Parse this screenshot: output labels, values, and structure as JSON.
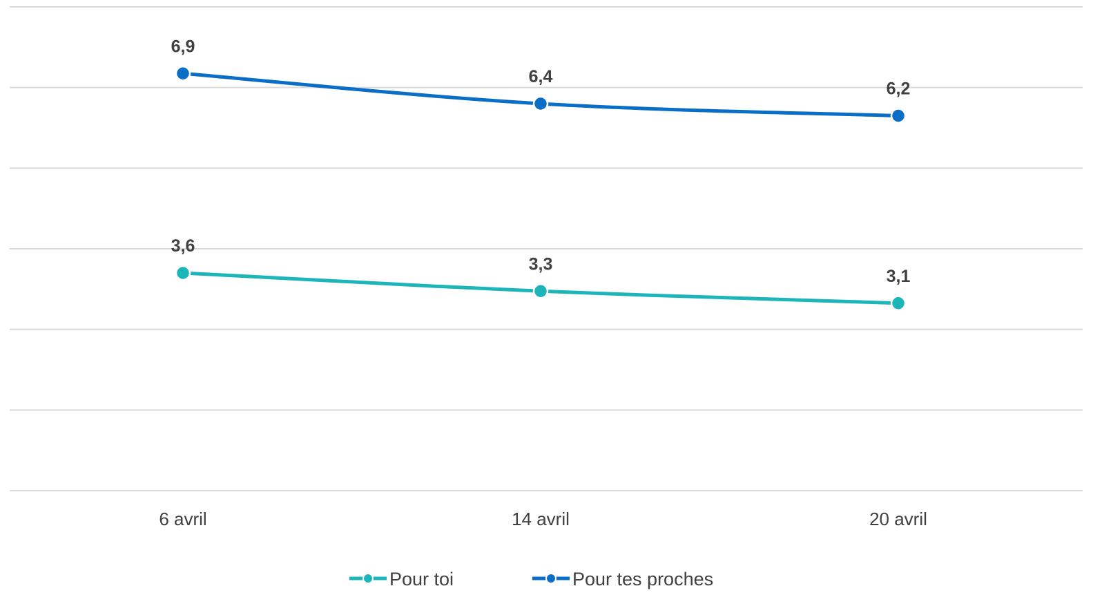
{
  "chart_data": {
    "type": "line",
    "title": "",
    "xlabel": "",
    "ylabel": "",
    "categories": [
      "6 avril",
      "14 avril",
      "20 avril"
    ],
    "ylim": [
      0,
      8
    ],
    "grid": true,
    "legend_position": "bottom",
    "series": [
      {
        "name": "Pour toi",
        "values": [
          3.6,
          3.3,
          3.1
        ],
        "labels": [
          "3,6",
          "3,3",
          "3,1"
        ],
        "color": "#1CB5BA"
      },
      {
        "name": "Pour tes proches",
        "values": [
          6.9,
          6.4,
          6.2
        ],
        "labels": [
          "6,9",
          "6,4",
          "6,2"
        ],
        "color": "#0A6EC6"
      }
    ]
  }
}
